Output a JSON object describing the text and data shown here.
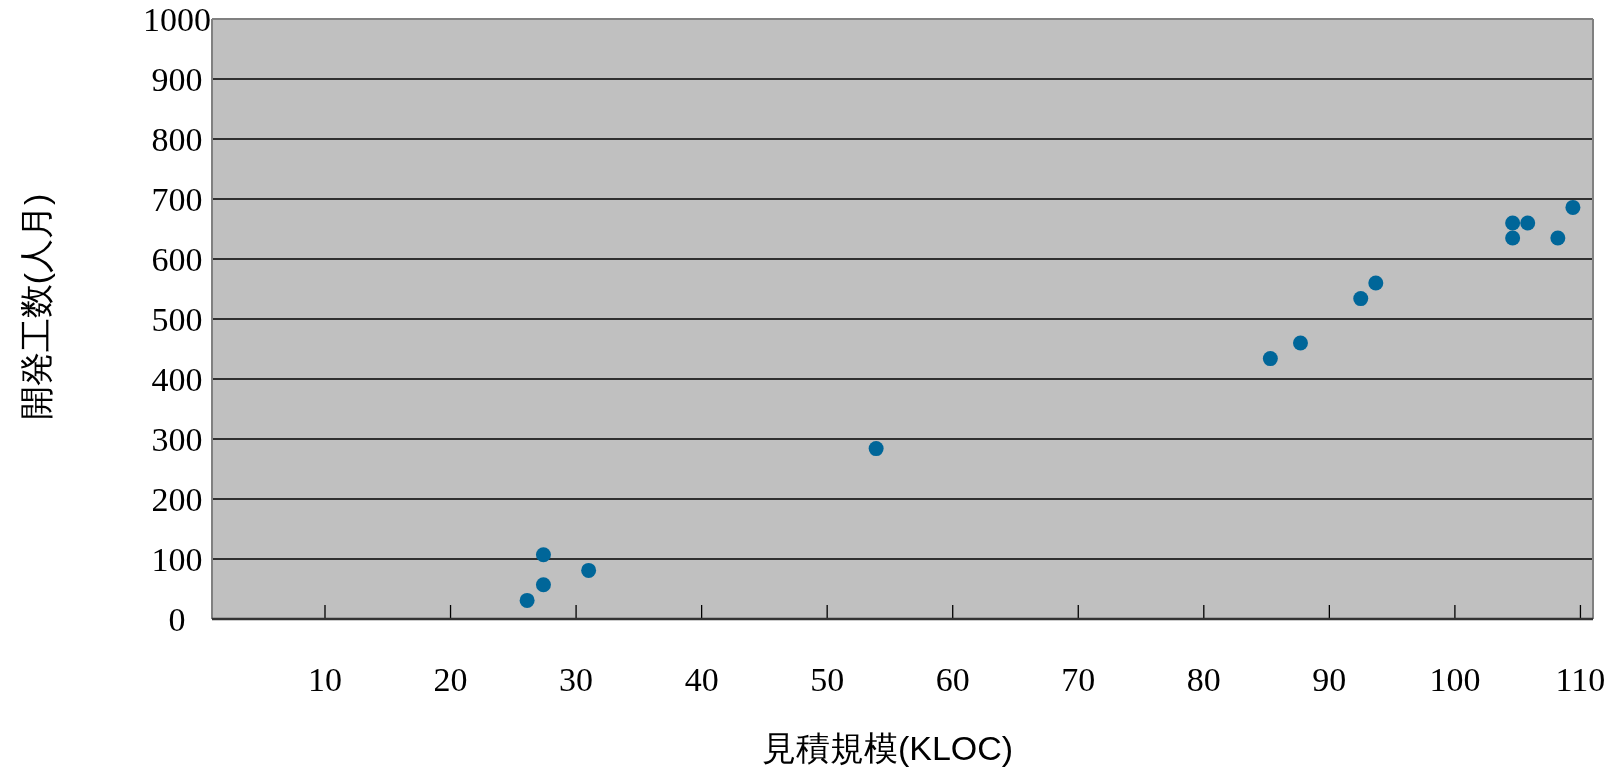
{
  "chart_data": {
    "type": "scatter",
    "xlabel": "見積規模(KLOC)",
    "ylabel": "開発工数(人月)",
    "series": [
      {
        "color": "#006699",
        "x": [
          26.1,
          27.4,
          27.4,
          31.0,
          53.9,
          85.3,
          87.7,
          92.5,
          93.7,
          104.6,
          105.8,
          104.6,
          108.2,
          109.4
        ],
        "values": [
          31,
          57,
          107,
          81,
          284,
          434,
          460,
          534,
          560,
          660,
          660,
          635,
          635,
          686
        ]
      }
    ],
    "xlim": [
      1,
      111
    ],
    "xticks": [
      10,
      20,
      30,
      40,
      50,
      60,
      70,
      80,
      90,
      100,
      110
    ],
    "ylim": [
      0,
      1000
    ],
    "yticks": [
      0,
      100,
      200,
      300,
      400,
      500,
      600,
      700,
      800,
      900,
      1000
    ],
    "grid": "y",
    "marker": "circle"
  }
}
